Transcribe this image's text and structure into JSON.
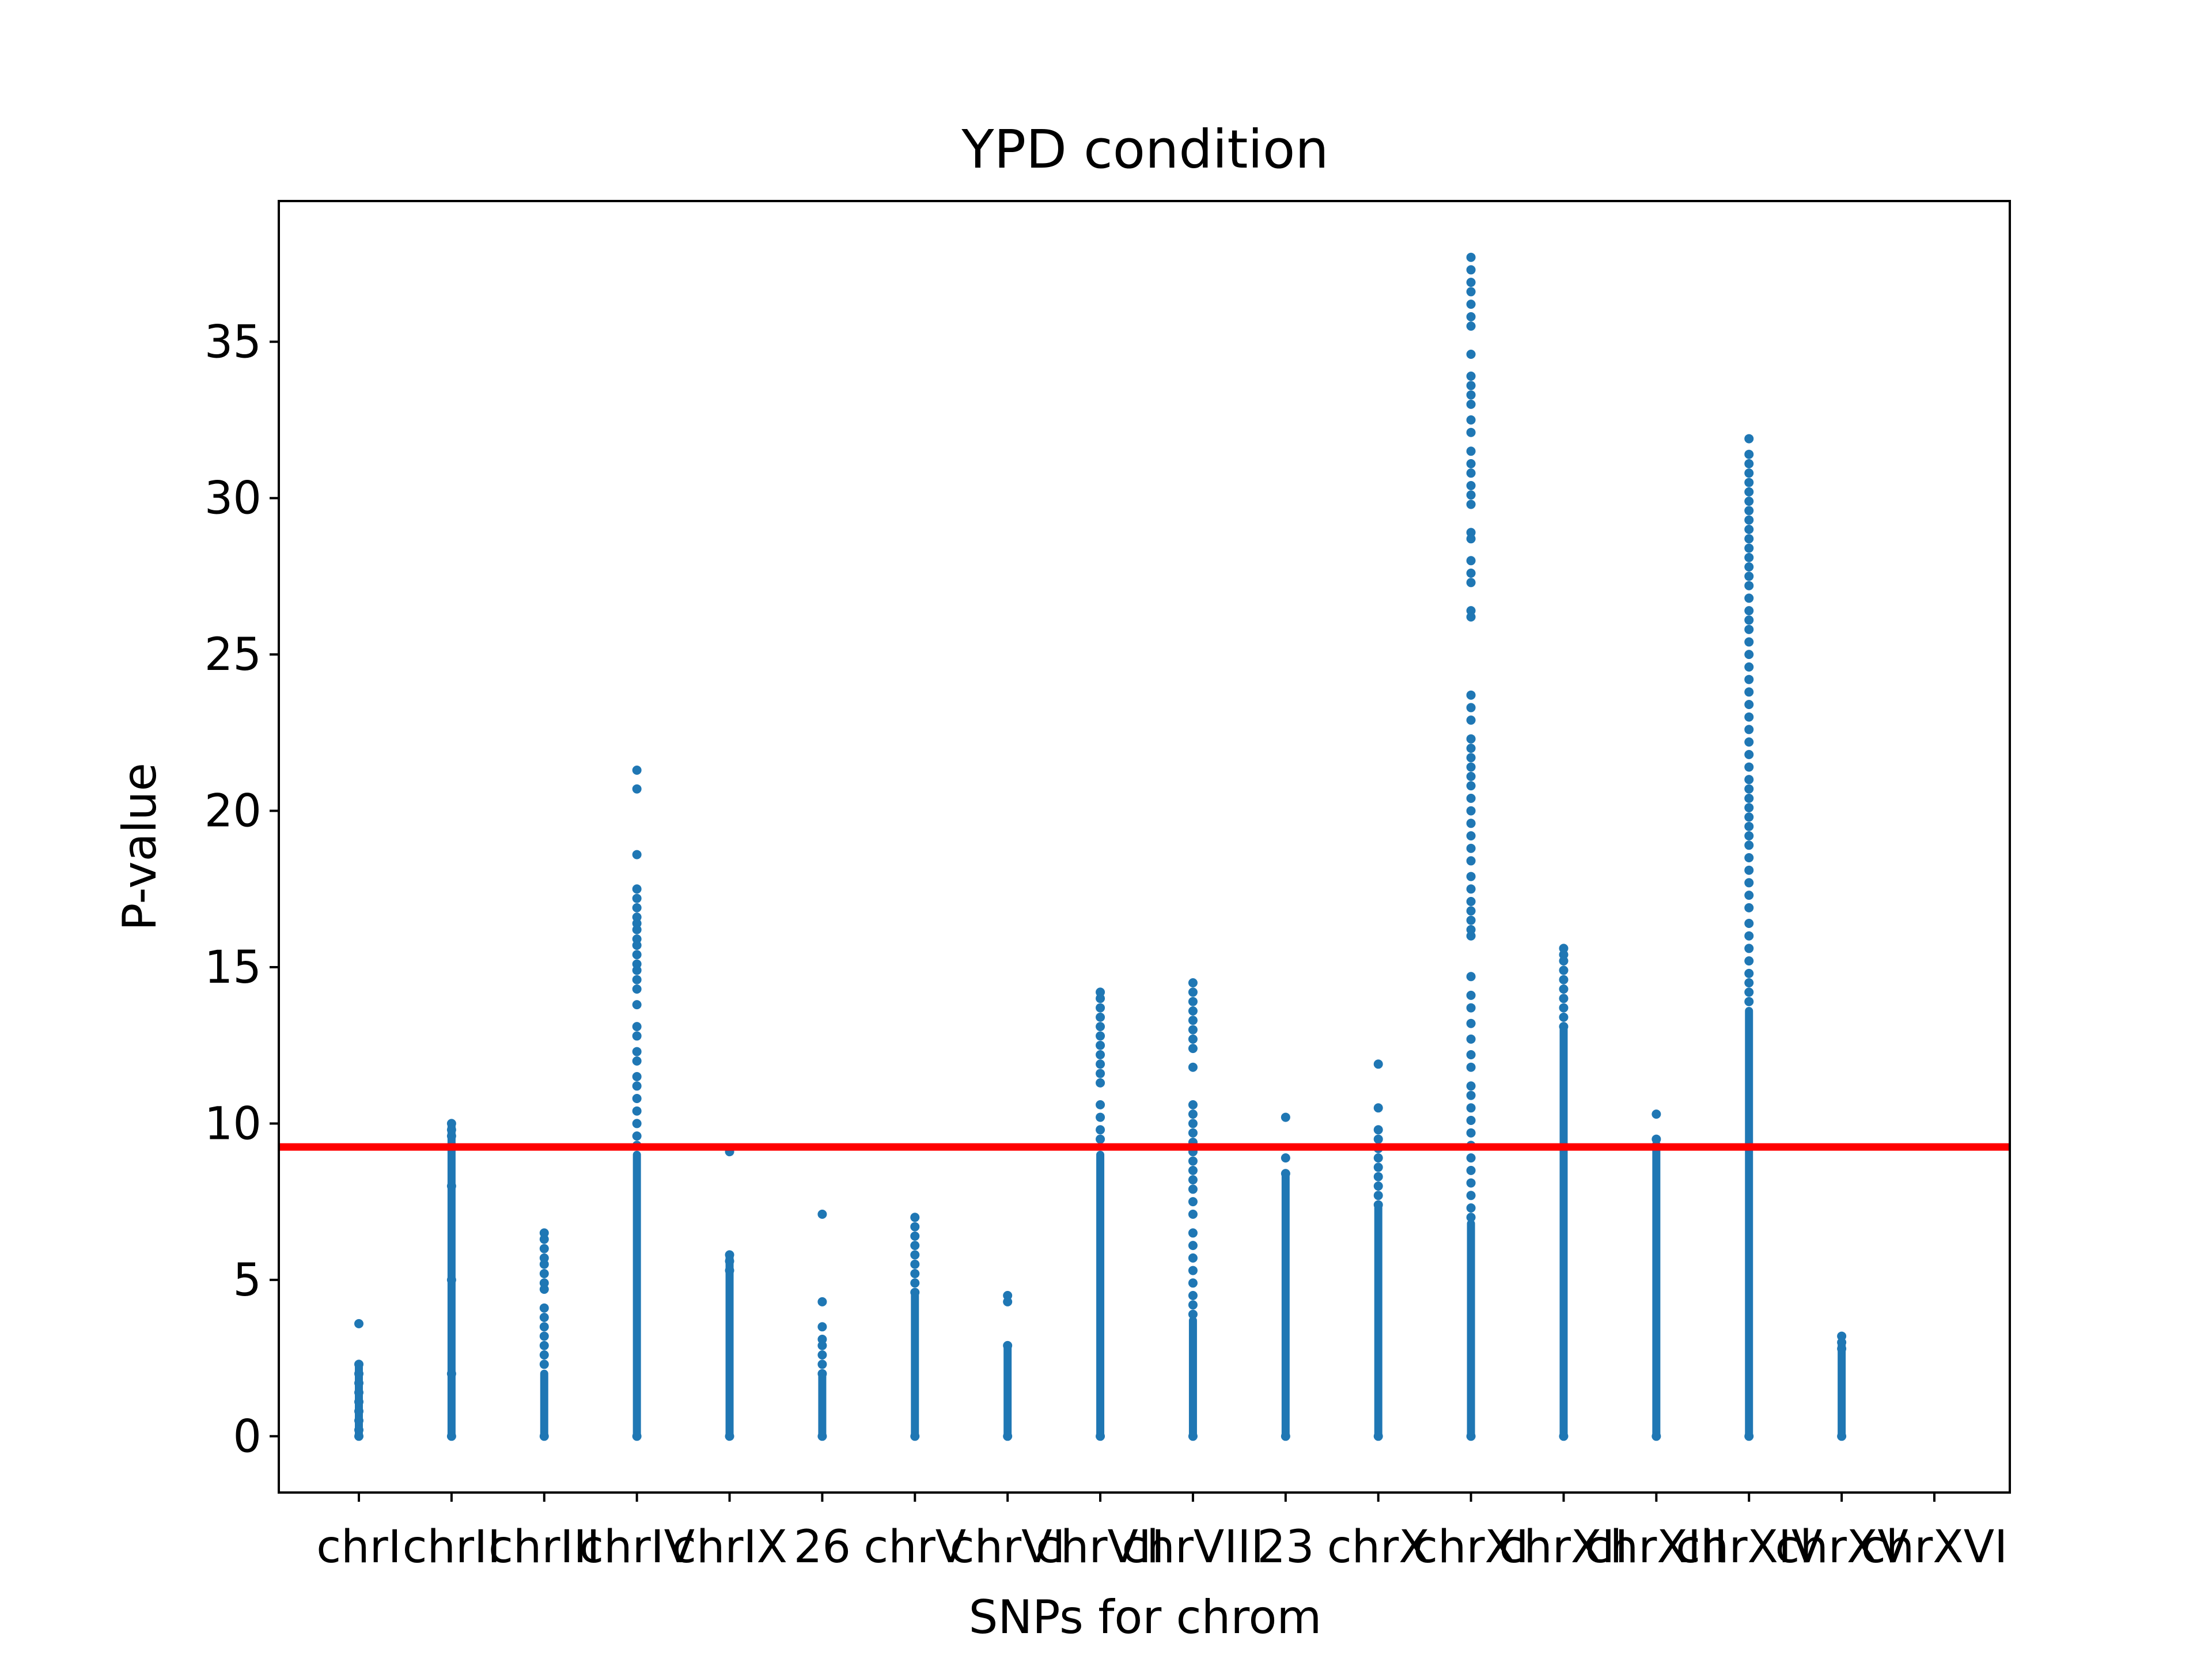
{
  "chart_data": {
    "type": "scatter",
    "title": "YPD condition",
    "xlabel": "SNPs for chrom",
    "ylabel": "P-value",
    "ylim": [
      -1.8,
      39.5
    ],
    "yticks": [
      0,
      5,
      10,
      15,
      20,
      25,
      30,
      35
    ],
    "threshold": 9.25,
    "grid": false,
    "categories": [
      "chrI",
      "chrII",
      "chrIII",
      "chrIV",
      "chrIX",
      "26",
      "chrV",
      "chrVI",
      "chrVII",
      "chrVIII",
      "23",
      "chrX",
      "chrXI",
      "chrXII",
      "chrXIII",
      "chrXIV",
      "chrXV",
      "chrXVI"
    ],
    "groups": [
      {
        "category": "chrI",
        "band_max": 2.2,
        "points": [
          3.6,
          2.3,
          2.0,
          1.7,
          1.4,
          1.1,
          0.8,
          0.5,
          0.2,
          0.0
        ]
      },
      {
        "category": "chrII",
        "band_max": 9.9,
        "points": [
          10.0,
          9.8,
          9.6,
          9.3,
          8.0,
          5.0,
          2.0,
          0.0
        ]
      },
      {
        "category": "chrIII",
        "band_max": 2.0,
        "points": [
          6.5,
          6.3,
          6.0,
          5.7,
          5.5,
          5.2,
          4.9,
          4.7,
          4.1,
          3.8,
          3.5,
          3.2,
          2.9,
          2.6,
          2.3,
          0.0
        ]
      },
      {
        "category": "chrIV",
        "band_max": 9.0,
        "points": [
          21.3,
          20.7,
          18.6,
          17.5,
          17.2,
          16.9,
          16.6,
          16.4,
          16.2,
          15.9,
          15.7,
          15.4,
          15.1,
          14.9,
          14.6,
          14.3,
          13.8,
          13.1,
          12.8,
          12.3,
          12.0,
          11.5,
          11.2,
          10.8,
          10.4,
          10.0,
          9.6,
          9.3,
          0.0
        ]
      },
      {
        "category": "chrIX",
        "band_max": 5.8,
        "points": [
          9.1,
          5.8,
          5.6,
          5.3,
          0.0
        ]
      },
      {
        "category": "26",
        "band_max": 1.9,
        "points": [
          7.1,
          4.3,
          3.5,
          3.1,
          2.9,
          2.6,
          2.3,
          2.0,
          0.0
        ]
      },
      {
        "category": "chrV",
        "band_max": 4.5,
        "points": [
          7.0,
          6.7,
          6.4,
          6.1,
          5.8,
          5.5,
          5.2,
          4.9,
          4.6,
          0.0
        ]
      },
      {
        "category": "chrVI",
        "band_max": 2.9,
        "points": [
          4.5,
          4.3,
          2.9,
          0.0
        ]
      },
      {
        "category": "chrVII",
        "band_max": 9.0,
        "points": [
          14.2,
          14.0,
          13.7,
          13.4,
          13.1,
          12.8,
          12.5,
          12.2,
          11.9,
          11.6,
          11.3,
          10.6,
          10.2,
          9.8,
          9.5,
          0.0
        ]
      },
      {
        "category": "chrVIII",
        "band_max": 3.7,
        "points": [
          14.5,
          14.2,
          13.9,
          13.6,
          13.3,
          13.0,
          12.7,
          12.4,
          11.8,
          10.6,
          10.3,
          10.0,
          9.7,
          9.4,
          9.1,
          8.8,
          8.5,
          8.2,
          7.9,
          7.5,
          7.1,
          6.5,
          6.1,
          5.7,
          5.3,
          4.9,
          4.5,
          4.2,
          3.9,
          0.0
        ]
      },
      {
        "category": "23",
        "band_max": 8.3,
        "points": [
          10.2,
          8.9,
          8.4,
          0.0
        ]
      },
      {
        "category": "chrX",
        "band_max": 7.3,
        "points": [
          11.9,
          10.5,
          9.8,
          9.5,
          9.2,
          8.9,
          8.6,
          8.3,
          8.0,
          7.7,
          7.4,
          0.0
        ]
      },
      {
        "category": "chrXI",
        "band_max": 6.8,
        "points": [
          37.7,
          37.3,
          36.9,
          36.6,
          36.2,
          35.8,
          35.5,
          34.6,
          33.9,
          33.6,
          33.3,
          33.0,
          32.5,
          32.1,
          31.5,
          31.1,
          30.8,
          30.4,
          30.1,
          29.8,
          28.9,
          28.7,
          28.0,
          27.6,
          27.3,
          26.4,
          26.2,
          23.7,
          23.3,
          22.9,
          22.3,
          22.0,
          21.7,
          21.4,
          21.1,
          20.8,
          20.4,
          20.0,
          19.6,
          19.2,
          18.8,
          18.4,
          17.9,
          17.5,
          17.1,
          16.8,
          16.5,
          16.2,
          16.0,
          14.7,
          14.1,
          13.7,
          13.2,
          12.7,
          12.2,
          11.8,
          11.2,
          10.9,
          10.5,
          10.1,
          9.7,
          9.3,
          8.9,
          8.5,
          8.1,
          7.7,
          7.3,
          7.0,
          0.0
        ]
      },
      {
        "category": "chrXII",
        "band_max": 13.0,
        "points": [
          15.6,
          15.4,
          15.2,
          14.9,
          14.6,
          14.3,
          14.0,
          13.7,
          13.4,
          13.1,
          0.0
        ]
      },
      {
        "category": "chrXIII",
        "band_max": 9.2,
        "points": [
          10.3,
          9.5,
          9.3,
          0.0
        ]
      },
      {
        "category": "chrXIV",
        "band_max": 13.6,
        "points": [
          31.9,
          31.4,
          31.1,
          30.8,
          30.5,
          30.2,
          29.9,
          29.6,
          29.3,
          29.0,
          28.7,
          28.4,
          28.1,
          27.8,
          27.5,
          27.2,
          26.8,
          26.4,
          26.1,
          25.8,
          25.4,
          25.0,
          24.6,
          24.2,
          23.8,
          23.4,
          23.0,
          22.6,
          22.2,
          21.8,
          21.4,
          21.0,
          20.7,
          20.4,
          20.1,
          19.8,
          19.5,
          19.2,
          18.9,
          18.5,
          18.1,
          17.7,
          17.3,
          16.9,
          16.4,
          16.0,
          15.6,
          15.2,
          14.8,
          14.5,
          14.2,
          13.9,
          0.0
        ]
      },
      {
        "category": "chrXV",
        "band_max": 2.9,
        "points": [
          3.2,
          3.0,
          2.8,
          0.0
        ]
      },
      {
        "category": "chrXVI",
        "band_max": null,
        "points": []
      }
    ],
    "colors": {
      "points": "#1f77b4",
      "threshold": "#ff0000",
      "axes": "#000000"
    }
  }
}
